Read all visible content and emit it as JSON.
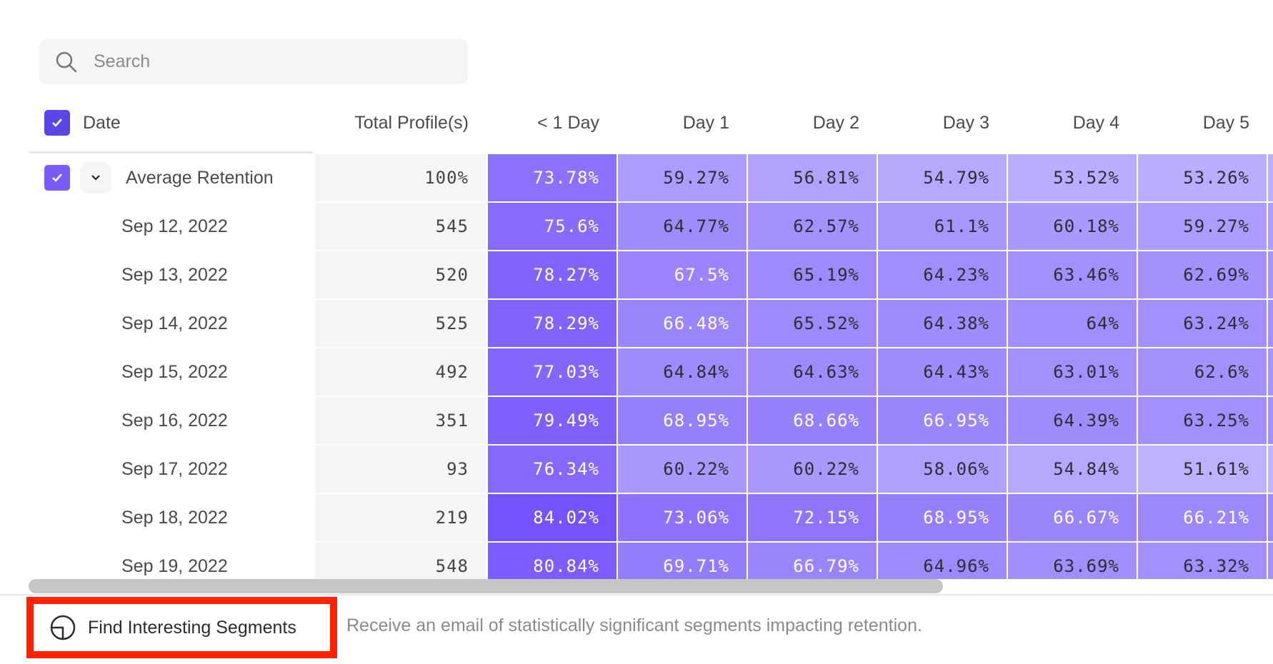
{
  "search": {
    "placeholder": "Search",
    "icon": "search-icon"
  },
  "header": {
    "date": "Date",
    "total": "Total Profile(s)",
    "days": [
      "< 1 Day",
      "Day 1",
      "Day 2",
      "Day 3",
      "Day 4",
      "Day 5"
    ]
  },
  "colors": {
    "accent": "#5b45e6",
    "checkbox_row": "#7b5cfb",
    "cell_low": "#c2b6fe",
    "cell_high": "#7150fc",
    "text_dark": "#2d2d33",
    "text_light": "#ffffff"
  },
  "rows": [
    {
      "label": "Average Retention",
      "total": "100%",
      "values": [
        "73.78%",
        "59.27%",
        "56.81%",
        "54.79%",
        "53.52%",
        "53.26%"
      ],
      "summary": true
    },
    {
      "label": "Sep 12, 2022",
      "total": "545",
      "values": [
        "75.6%",
        "64.77%",
        "62.57%",
        "61.1%",
        "60.18%",
        "59.27%"
      ]
    },
    {
      "label": "Sep 13, 2022",
      "total": "520",
      "values": [
        "78.27%",
        "67.5%",
        "65.19%",
        "64.23%",
        "63.46%",
        "62.69%"
      ]
    },
    {
      "label": "Sep 14, 2022",
      "total": "525",
      "values": [
        "78.29%",
        "66.48%",
        "65.52%",
        "64.38%",
        "64%",
        "63.24%"
      ]
    },
    {
      "label": "Sep 15, 2022",
      "total": "492",
      "values": [
        "77.03%",
        "64.84%",
        "64.63%",
        "64.43%",
        "63.01%",
        "62.6%"
      ]
    },
    {
      "label": "Sep 16, 2022",
      "total": "351",
      "values": [
        "79.49%",
        "68.95%",
        "68.66%",
        "66.95%",
        "64.39%",
        "63.25%"
      ]
    },
    {
      "label": "Sep 17, 2022",
      "total": "93",
      "values": [
        "76.34%",
        "60.22%",
        "60.22%",
        "58.06%",
        "54.84%",
        "51.61%"
      ]
    },
    {
      "label": "Sep 18, 2022",
      "total": "219",
      "values": [
        "84.02%",
        "73.06%",
        "72.15%",
        "68.95%",
        "66.67%",
        "66.21%"
      ]
    },
    {
      "label": "Sep 19, 2022",
      "total": "548",
      "values": [
        "80.84%",
        "69.71%",
        "66.79%",
        "64.96%",
        "63.69%",
        "63.32%"
      ]
    }
  ],
  "footer": {
    "button": "Find Interesting Segments",
    "description": "Receive an email of statistically significant segments impacting retention."
  }
}
